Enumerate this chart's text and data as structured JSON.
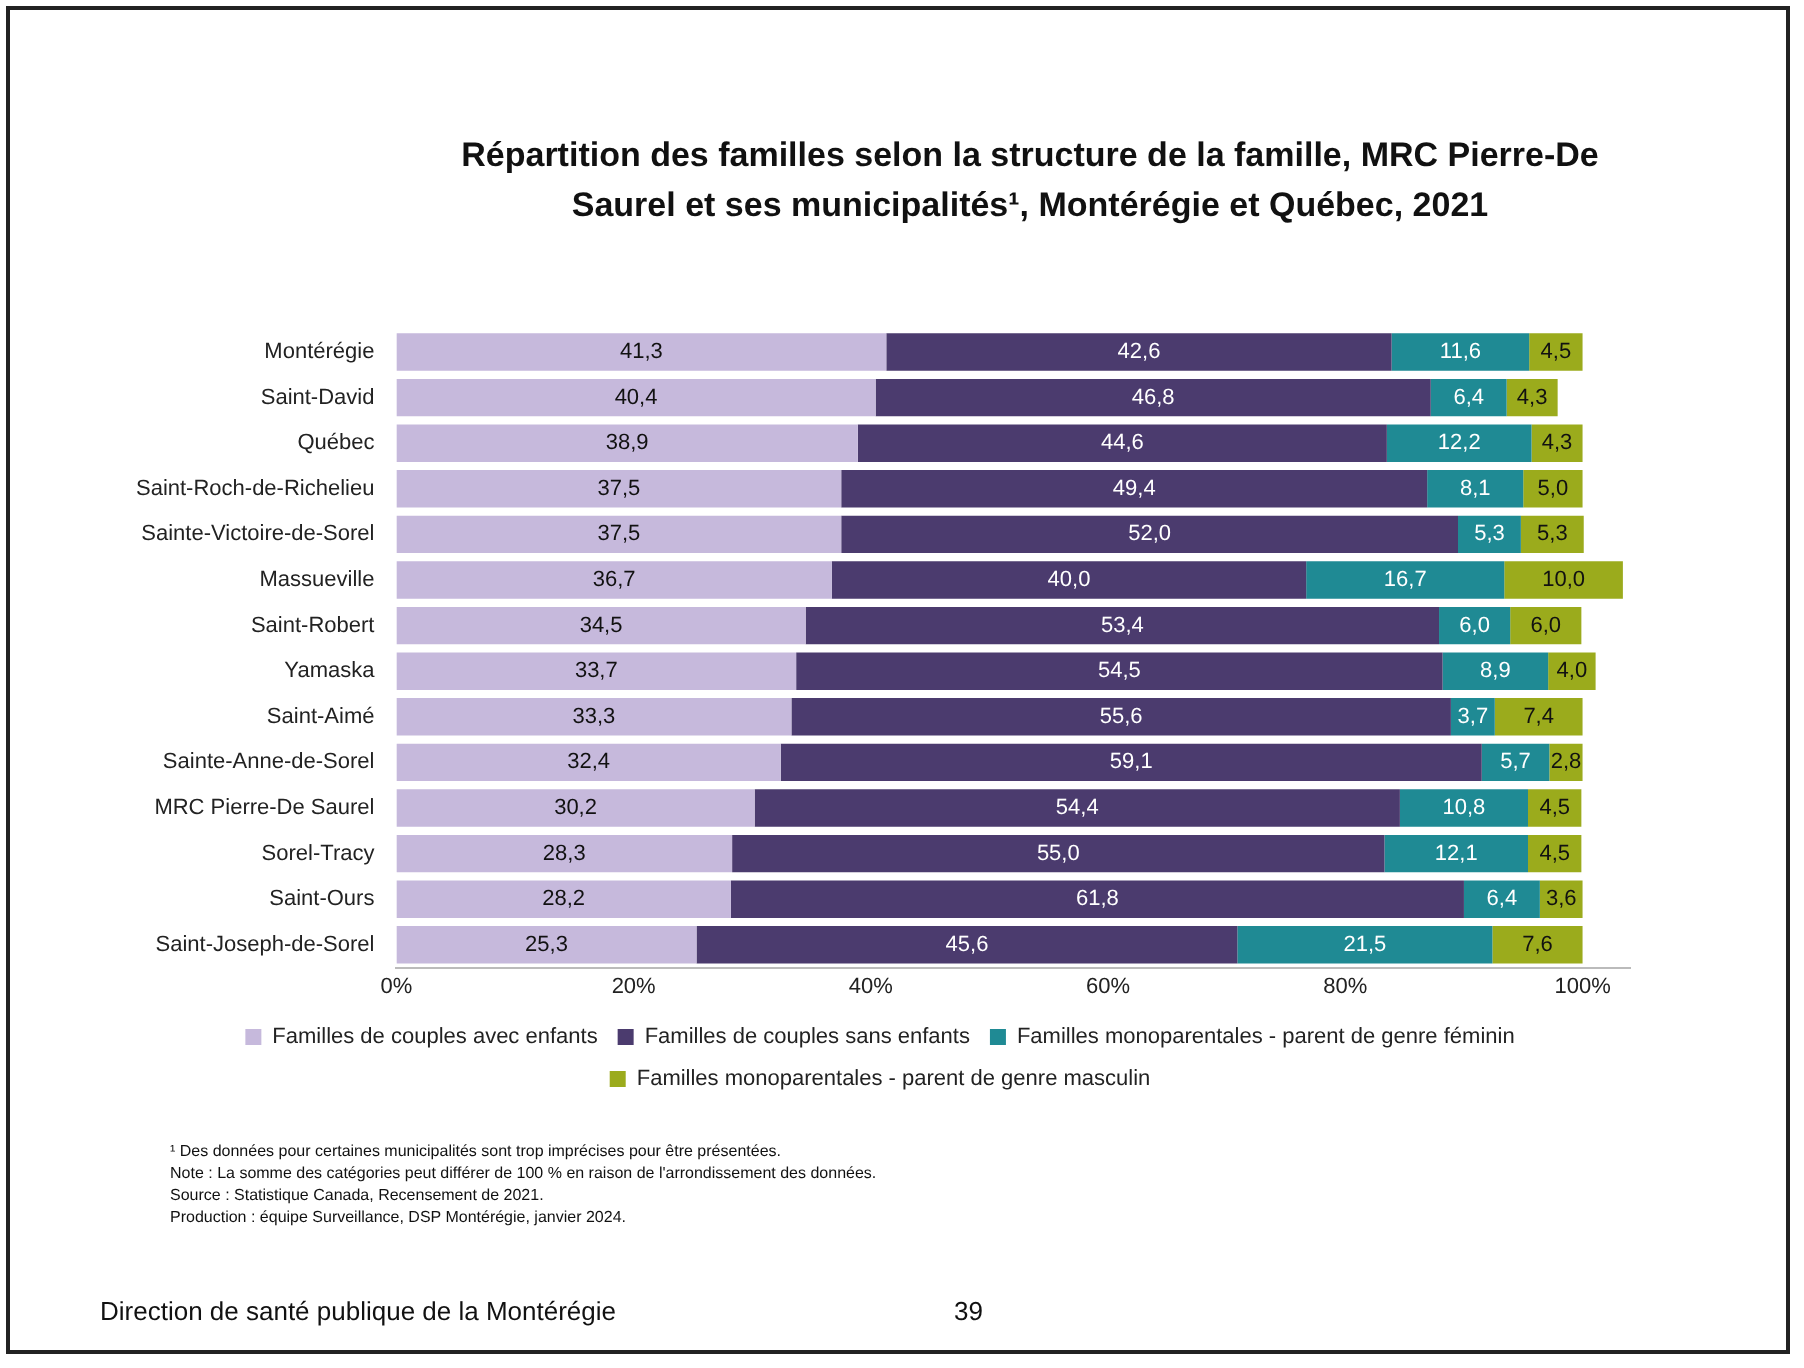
{
  "chart_data": {
    "type": "bar",
    "orientation": "horizontal",
    "stacked": true,
    "title": "Répartition des familles selon la structure de la famille, MRC Pierre-De Saurel et ses municipalités¹, Montérégie et Québec, 2021",
    "categories": [
      "Montérégie",
      "Saint-David",
      "Québec",
      "Saint-Roch-de-Richelieu",
      "Sainte-Victoire-de-Sorel",
      "Massueville",
      "Saint-Robert",
      "Yamaska",
      "Saint-Aimé",
      "Sainte-Anne-de-Sorel",
      "MRC Pierre-De Saurel",
      "Sorel-Tracy",
      "Saint-Ours",
      "Saint-Joseph-de-Sorel"
    ],
    "series": [
      {
        "name": "Familles de couples avec enfants",
        "color": "#c6b9dc",
        "values": [
          41.3,
          40.4,
          38.9,
          37.5,
          37.5,
          36.7,
          34.5,
          33.7,
          33.3,
          32.4,
          30.2,
          28.3,
          28.2,
          25.3
        ],
        "value_labels": [
          "41,3",
          "40,4",
          "38,9",
          "37,5",
          "37,5",
          "36,7",
          "34,5",
          "33,7",
          "33,3",
          "32,4",
          "30,2",
          "28,3",
          "28,2",
          "25,3"
        ]
      },
      {
        "name": "Familles de couples sans enfants",
        "color": "#4b3b6e",
        "values": [
          42.6,
          46.8,
          44.6,
          49.4,
          52.0,
          40.0,
          53.4,
          54.5,
          55.6,
          59.1,
          54.4,
          55.0,
          61.8,
          45.6
        ],
        "value_labels": [
          "42,6",
          "46,8",
          "44,6",
          "49,4",
          "52,0",
          "40,0",
          "53,4",
          "54,5",
          "55,6",
          "59,1",
          "54,4",
          "55,0",
          "61,8",
          "45,6"
        ]
      },
      {
        "name": "Familles monoparentales - parent de genre féminin",
        "color": "#1f8a94",
        "values": [
          11.6,
          6.4,
          12.2,
          8.1,
          5.3,
          16.7,
          6.0,
          8.9,
          3.7,
          5.7,
          10.8,
          12.1,
          6.4,
          21.5
        ],
        "value_labels": [
          "11,6",
          "6,4",
          "12,2",
          "8,1",
          "5,3",
          "16,7",
          "6,0",
          "8,9",
          "3,7",
          "5,7",
          "10,8",
          "12,1",
          "6,4",
          "21,5"
        ]
      },
      {
        "name": "Familles monoparentales - parent de genre masculin",
        "color": "#9bab1c",
        "values": [
          4.5,
          4.3,
          4.3,
          5.0,
          5.3,
          10.0,
          6.0,
          4.0,
          7.4,
          2.8,
          4.5,
          4.5,
          3.6,
          7.6
        ],
        "value_labels": [
          "4,5",
          "4,3",
          "4,3",
          "5,0",
          "5,3",
          "10,0",
          "6,0",
          "4,0",
          "7,4",
          "2,8",
          "4,5",
          "4,5",
          "3,6",
          "7,6"
        ]
      }
    ],
    "xlim": [
      0,
      104
    ],
    "xticks": [
      {
        "value": 0,
        "label": "0%"
      },
      {
        "value": 20,
        "label": "20%"
      },
      {
        "value": 40,
        "label": "40%"
      },
      {
        "value": 60,
        "label": "60%"
      },
      {
        "value": 80,
        "label": "80%"
      },
      {
        "value": 100,
        "label": "100%"
      }
    ],
    "grid": false,
    "legend": "bottom",
    "annotations": [
      "¹ Des données pour certaines municipalités sont trop imprécises pour être présentées.",
      "Note : La somme des catégories peut différer de 100 % en raison de l'arrondissement des données.",
      "Source : Statistique Canada, Recensement de 2021.",
      "Production : équipe Surveillance, DSP Montérégie, janvier 2024.",
      "Direction de santé publique de la Montérégie",
      "39"
    ]
  }
}
